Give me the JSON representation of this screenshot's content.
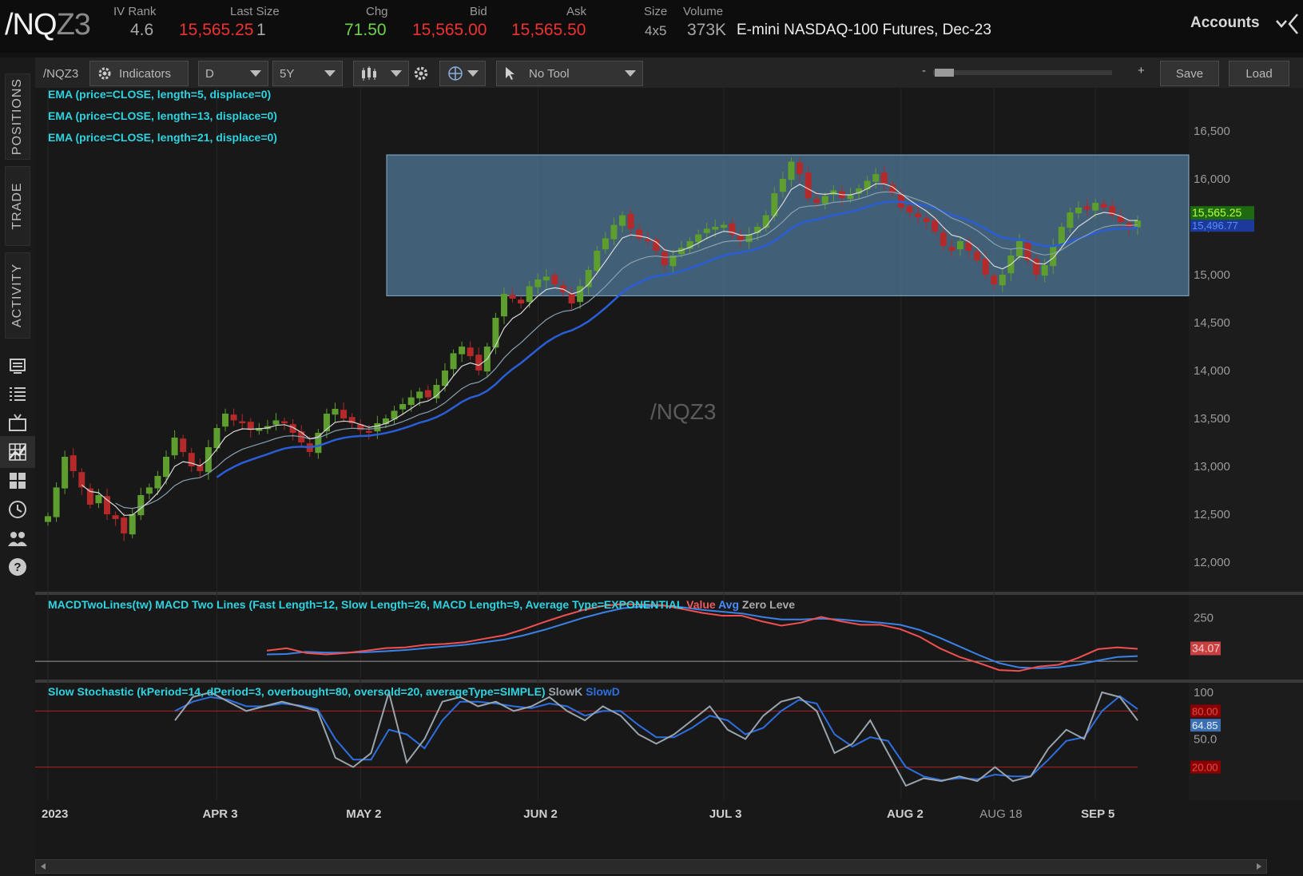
{
  "header": {
    "symbol_main": "/NQ",
    "symbol_suffix": "Z3",
    "iv_rank_label": "IV Rank",
    "iv_rank_value": "4.6",
    "last_size_label": "Last Size",
    "last_price": "15,565.25",
    "last_qty": "1",
    "chg_label": "Chg",
    "chg_value": "71.50",
    "bid_label": "Bid",
    "bid_value": "15,565.00",
    "ask_label": "Ask",
    "ask_value": "15,565.50",
    "size_label": "Size",
    "size_value": "4x5",
    "volume_label": "Volume",
    "volume_value": "373K",
    "description": "E-mini NASDAQ-100 Futures, Dec-23",
    "accounts_label": "Accounts"
  },
  "toolbar": {
    "symbol": "/NQZ3",
    "indicators_label": "Indicators",
    "aggregation": "D",
    "time_frame": "5Y",
    "tool_label": "No Tool",
    "zoom_minus": "-",
    "zoom_plus": "+",
    "save_label": "Save",
    "load_label": "Load"
  },
  "sidebar": {
    "tabs": [
      "POSITIONS",
      "TRADE",
      "ACTIVITY"
    ],
    "icons": [
      "monitor-icon",
      "list-icon",
      "tv-icon",
      "chart-grid-icon",
      "tiles-icon",
      "clock-icon",
      "people-icon",
      "help-icon"
    ]
  },
  "studies": {
    "ema5": "EMA (price=CLOSE, length=5, displace=0)",
    "ema13": "EMA (price=CLOSE, length=13, displace=0)",
    "ema21": "EMA (price=CLOSE, length=21, displace=0)",
    "macd_title": "MACDTwoLines(tw) MACD Two Lines (Fast Length=12, Slow Length=26, MACD Length=9, Average Type=EXPONENTIAL",
    "macd_value": "Value",
    "macd_avg": "Avg",
    "macd_zero": "Zero Leve",
    "stoch_title": "Slow Stochastic (kPeriod=14, dPeriod=3, overbought=80, oversold=20, averageType=SIMPLE)",
    "stoch_k": "SlowK",
    "stoch_d": "SlowD"
  },
  "watermark": "/NQZ3",
  "colors": {
    "up_candle": "#5e9e2f",
    "down_candle": "#b42a2a",
    "ema5": "#d8d8d8",
    "ema13": "#8aa0b0",
    "ema21": "#2a5ed8",
    "macd_value": "#f05050",
    "macd_avg": "#3a82e8",
    "slowk": "#9aa4ad",
    "slowd": "#2e6fe0",
    "zone": "#5a8ab0"
  },
  "chart_data": [
    {
      "type": "candlestick",
      "title": "/NQZ3",
      "y_ticks": [
        "16,500",
        "16,000",
        "15,500",
        "15,000",
        "14,500",
        "14,000",
        "13,500",
        "13,000",
        "12,500",
        "12,000"
      ],
      "y_range": [
        11700,
        16950
      ],
      "x_ticks": [
        "2023",
        "APR 3",
        "MAY 2",
        "JUN 2",
        "JUL 3",
        "AUG 2",
        "AUG 18",
        "SEP 5"
      ],
      "last_price_label": "15,565.25",
      "ema21_label": "15,496.77",
      "highlight_zone": [
        14780,
        16250
      ],
      "closes": [
        12480,
        12780,
        13100,
        12950,
        12780,
        12600,
        12700,
        12500,
        12450,
        12300,
        12500,
        12700,
        12780,
        12900,
        13100,
        13300,
        13150,
        13000,
        12950,
        13200,
        13400,
        13550,
        13480,
        13450,
        13380,
        13400,
        13420,
        13480,
        13450,
        13350,
        13250,
        13150,
        13350,
        13550,
        13600,
        13500,
        13450,
        13380,
        13350,
        13450,
        13500,
        13580,
        13650,
        13720,
        13780,
        13720,
        13850,
        14000,
        14180,
        14250,
        14150,
        14000,
        14250,
        14550,
        14800,
        14750,
        14700,
        14880,
        14950,
        14980,
        14900,
        14820,
        14700,
        14880,
        15050,
        15250,
        15380,
        15520,
        15620,
        15480,
        15380,
        15350,
        15250,
        15100,
        15200,
        15280,
        15350,
        15420,
        15480,
        15500,
        15520,
        15420,
        15350,
        15420,
        15500,
        15620,
        15850,
        16000,
        16180,
        16050,
        15800,
        15750,
        15820,
        15880,
        15800,
        15830,
        15900,
        15980,
        16050,
        15950,
        15850,
        15700,
        15650,
        15600,
        15550,
        15450,
        15300,
        15250,
        15350,
        15250,
        15150,
        15000,
        14900,
        15000,
        15200,
        15350,
        15150,
        15000,
        15100,
        15300,
        15500,
        15650,
        15700,
        15680,
        15750,
        15700,
        15620,
        15550,
        15480,
        15565
      ]
    },
    {
      "type": "line",
      "title": "MACD Two Lines",
      "y_ticks": [
        "250"
      ],
      "value_label": "34.07",
      "series": [
        {
          "name": "Value",
          "values": [
            62,
            75,
            48,
            40,
            48,
            61,
            76,
            80,
            95,
            100,
            110,
            130,
            150,
            185,
            225,
            262,
            295,
            318,
            330,
            325,
            322,
            300,
            278,
            262,
            262,
            230,
            205,
            222,
            255,
            230,
            210,
            210,
            185,
            140,
            75,
            25,
            -10,
            -50,
            -55,
            -30,
            -20,
            20,
            70,
            80,
            72
          ]
        },
        {
          "name": "Avg",
          "values": [
            40,
            42,
            55,
            50,
            50,
            52,
            58,
            65,
            75,
            85,
            95,
            110,
            125,
            150,
            180,
            215,
            250,
            280,
            305,
            315,
            320,
            310,
            295,
            285,
            275,
            255,
            240,
            240,
            245,
            240,
            230,
            222,
            210,
            180,
            135,
            85,
            35,
            -10,
            -35,
            -40,
            -35,
            -20,
            5,
            25,
            30
          ]
        }
      ]
    },
    {
      "type": "line",
      "title": "Slow Stochastic",
      "y_ticks": [
        "100",
        "80.00",
        "64.85",
        "50.0",
        "20.00"
      ],
      "series": [
        {
          "name": "SlowK",
          "values": [
            70,
            95,
            100,
            90,
            80,
            85,
            90,
            85,
            80,
            30,
            20,
            35,
            100,
            25,
            50,
            90,
            95,
            85,
            90,
            80,
            85,
            95,
            80,
            70,
            85,
            75,
            55,
            45,
            55,
            70,
            85,
            60,
            50,
            75,
            90,
            95,
            80,
            35,
            45,
            70,
            35,
            0,
            8,
            5,
            10,
            5,
            20,
            5,
            10,
            40,
            60,
            50,
            100,
            95,
            70
          ]
        },
        {
          "name": "SlowD",
          "values": [
            80,
            90,
            95,
            92,
            85,
            85,
            88,
            86,
            82,
            50,
            28,
            28,
            60,
            55,
            40,
            70,
            90,
            90,
            88,
            85,
            83,
            88,
            85,
            75,
            80,
            80,
            65,
            52,
            52,
            62,
            75,
            70,
            55,
            62,
            80,
            92,
            88,
            55,
            42,
            52,
            48,
            20,
            10,
            6,
            8,
            7,
            12,
            10,
            10,
            28,
            48,
            52,
            80,
            96,
            82
          ]
        }
      ]
    }
  ]
}
